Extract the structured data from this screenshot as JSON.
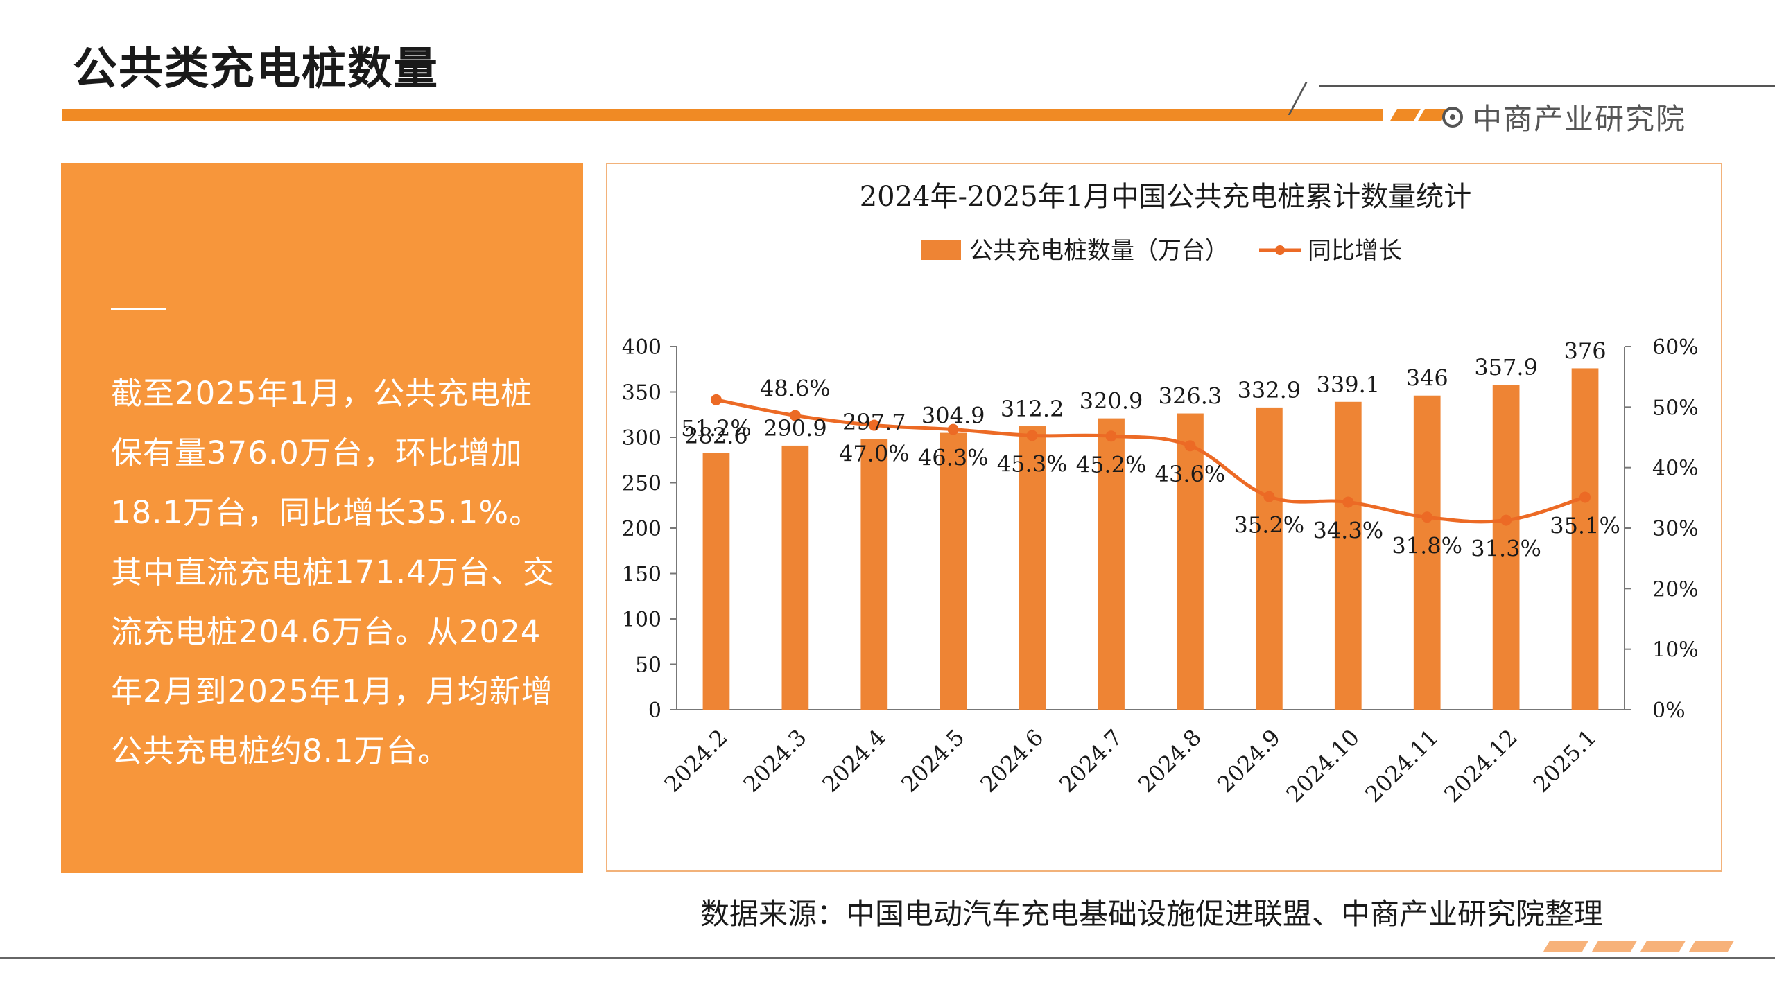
{
  "page": {
    "title": "公共类充电桩数量",
    "brand_name": "中商产业研究院",
    "summary": "截至2025年1月，公共充电桩保有量376.0万台，环比增加18.1万台，同比增长35.1%。其中直流充电桩171.4万台、交流充电桩204.6万台。从2024年2月到2025年1月，月均新增公共充电桩约8.1万台。",
    "source": "数据来源：中国电动汽车充电基础设施促进联盟、中商产业研究院整理"
  },
  "colors": {
    "accent": "#f08a24",
    "panel": "#f7963b",
    "bar": "#ee8434",
    "line": "#ec6a25"
  },
  "chart_data": {
    "type": "bar",
    "title": "2024年-2025年1月中国公共充电桩累计数量统计",
    "categories": [
      "2024.2",
      "2024.3",
      "2024.4",
      "2024.5",
      "2024.6",
      "2024.7",
      "2024.8",
      "2024.9",
      "2024.10",
      "2024.11",
      "2024.12",
      "2025.1"
    ],
    "series": [
      {
        "name": "公共充电桩数量（万台）",
        "type": "bar",
        "axis": "left",
        "values": [
          282.6,
          290.9,
          297.7,
          304.9,
          312.2,
          320.9,
          326.3,
          332.9,
          339.1,
          346,
          357.9,
          376
        ],
        "labels": [
          "282.6",
          "290.9",
          "297.7",
          "304.9",
          "312.2",
          "320.9",
          "326.3",
          "332.9",
          "339.1",
          "346",
          "357.9",
          "376"
        ]
      },
      {
        "name": "同比增长",
        "type": "line",
        "axis": "right",
        "values": [
          51.2,
          48.6,
          47.0,
          46.3,
          45.3,
          45.2,
          43.6,
          35.2,
          34.3,
          31.8,
          31.3,
          35.1
        ],
        "labels": [
          "51.2%",
          "48.6%",
          "47.0%",
          "46.3%",
          "45.3%",
          "45.2%",
          "43.6%",
          "35.2%",
          "34.3%",
          "31.8%",
          "31.3%",
          "35.1%"
        ]
      }
    ],
    "y_left": {
      "min": 0,
      "max": 400,
      "ticks": [
        "0",
        "50",
        "100",
        "150",
        "200",
        "250",
        "300",
        "350",
        "400"
      ]
    },
    "y_right": {
      "min": 0,
      "max": 60,
      "ticks": [
        "0%",
        "10%",
        "20%",
        "30%",
        "40%",
        "50%",
        "60%"
      ]
    },
    "legend_position": "top-center",
    "grid": false
  }
}
